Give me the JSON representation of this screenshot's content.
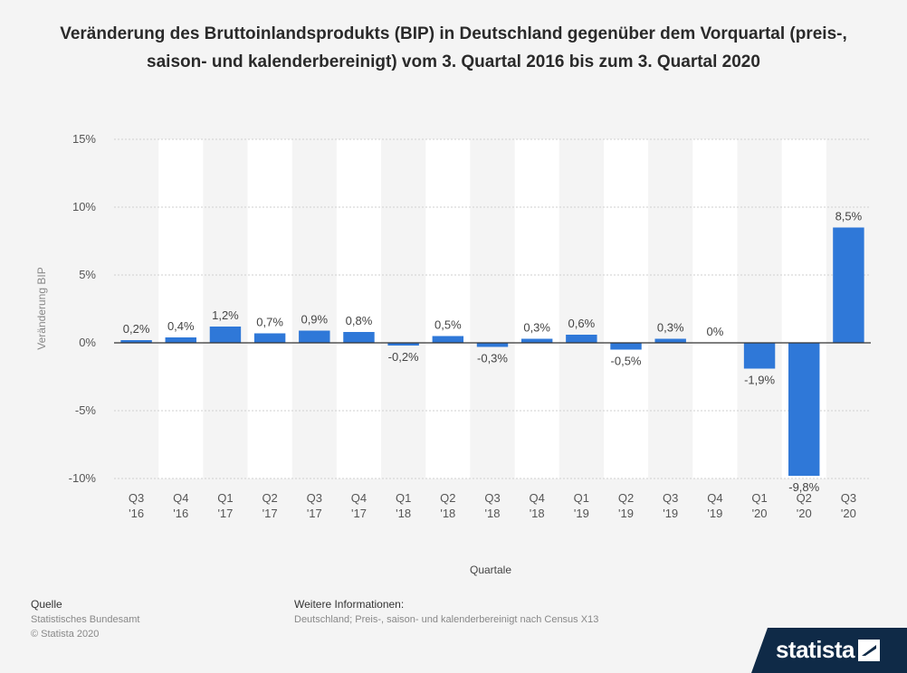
{
  "chart_data": {
    "type": "bar",
    "title": "Veränderung des Bruttoinlandsprodukts (BIP) in Deutschland gegenüber dem Vorquartal (preis-, saison- und kalenderbereinigt) vom 3. Quartal 2016 bis zum 3. Quartal 2020",
    "xlabel": "Quartale",
    "ylabel": "Veränderung BIP",
    "ylim": [
      -10,
      15
    ],
    "yticks": [
      15,
      10,
      5,
      0,
      -5,
      -10
    ],
    "ytick_labels": [
      "15%",
      "10%",
      "5%",
      "0%",
      "-5%",
      "-10%"
    ],
    "categories": [
      [
        "Q3",
        "'16"
      ],
      [
        "Q4",
        "'16"
      ],
      [
        "Q1",
        "'17"
      ],
      [
        "Q2",
        "'17"
      ],
      [
        "Q3",
        "'17"
      ],
      [
        "Q4",
        "'17"
      ],
      [
        "Q1",
        "'18"
      ],
      [
        "Q2",
        "'18"
      ],
      [
        "Q3",
        "'18"
      ],
      [
        "Q4",
        "'18"
      ],
      [
        "Q1",
        "'19"
      ],
      [
        "Q2",
        "'19"
      ],
      [
        "Q3",
        "'19"
      ],
      [
        "Q4",
        "'19"
      ],
      [
        "Q1",
        "'20"
      ],
      [
        "Q2",
        "'20"
      ],
      [
        "Q3",
        "'20"
      ]
    ],
    "values": [
      0.2,
      0.4,
      1.2,
      0.7,
      0.9,
      0.8,
      -0.2,
      0.5,
      -0.3,
      0.3,
      0.6,
      -0.5,
      0.3,
      0,
      -1.9,
      -9.8,
      8.5
    ],
    "data_labels": [
      "0,2%",
      "0,4%",
      "1,2%",
      "0,7%",
      "0,9%",
      "0,8%",
      "-0,2%",
      "0,5%",
      "-0,3%",
      "0,3%",
      "0,6%",
      "-0,5%",
      "0,3%",
      "0%",
      "-1,9%",
      "-9,8%",
      "8,5%"
    ],
    "grid": true,
    "colors": {
      "bar": "#2f78d8",
      "band": "#ffffff",
      "zero_line": "#333333"
    }
  },
  "footer": {
    "source_heading": "Quelle",
    "source_line1": "Statistisches Bundesamt",
    "source_line2": "© Statista 2020",
    "info_heading": "Weitere Informationen:",
    "info_line1": "Deutschland; Preis-, saison- und kalenderbereinigt nach Census X13"
  },
  "brand": {
    "logo_text": "statista"
  }
}
